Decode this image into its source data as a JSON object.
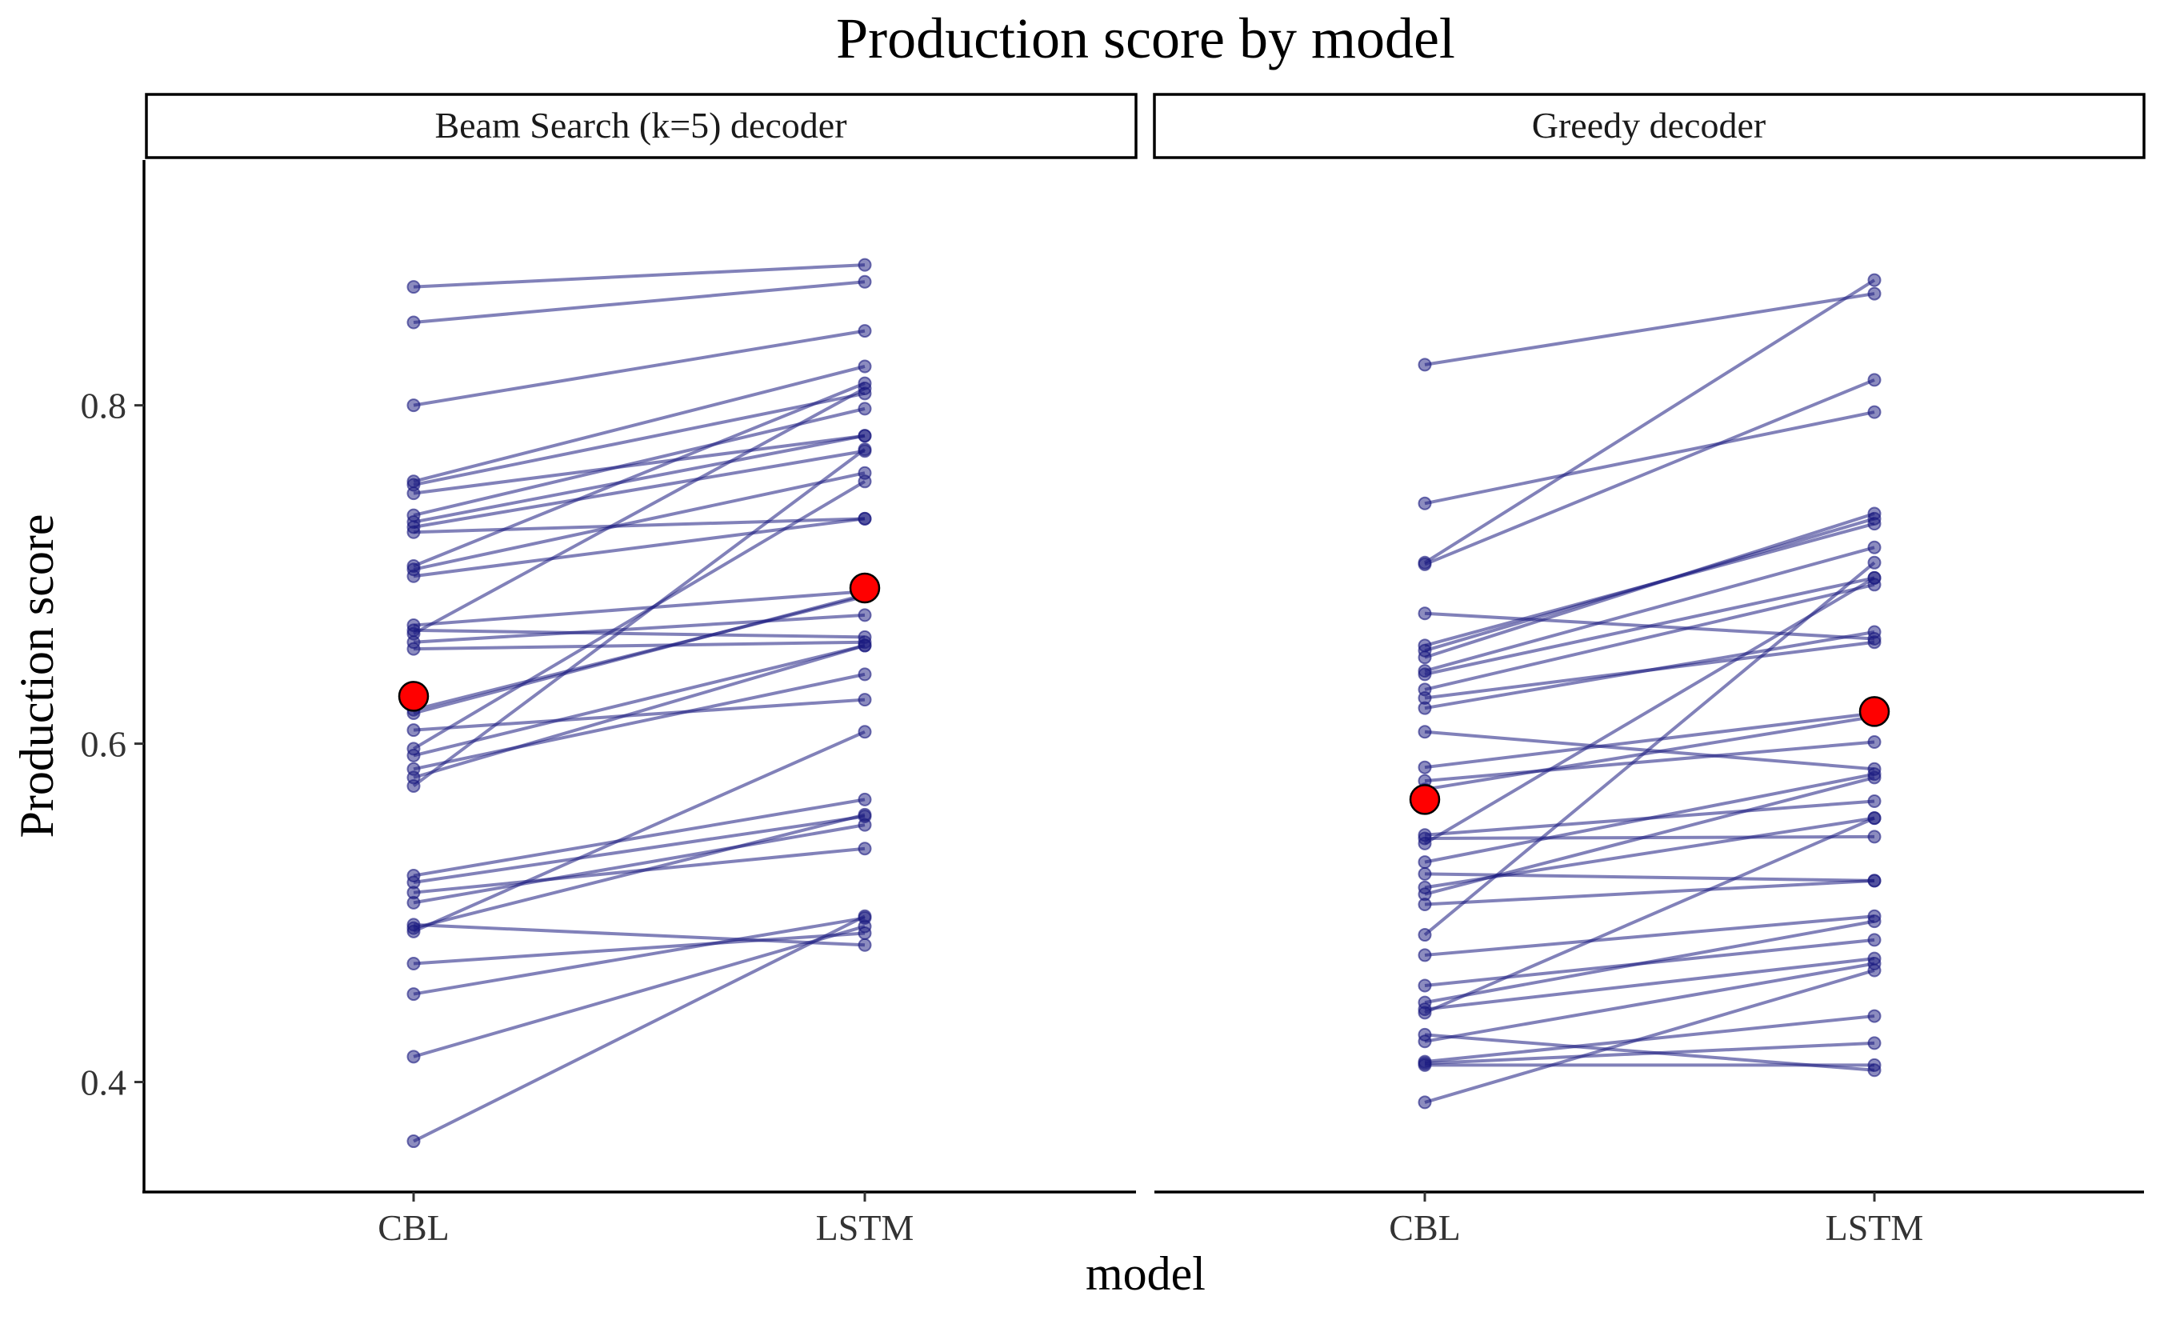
{
  "chart_data": {
    "type": "line",
    "title": "Production score by model",
    "xlabel": "model",
    "ylabel": "Production score",
    "categories": [
      "CBL",
      "LSTM"
    ],
    "y_ticks": [
      0.4,
      0.6,
      0.8
    ],
    "y_tick_labels": [
      "0.4",
      "0.6",
      "0.8"
    ],
    "ylim": [
      0.335,
      0.945
    ],
    "grid": false,
    "legend": "none",
    "colors": {
      "line": "#1a1a80",
      "point": "#1a1a80",
      "mean": "#ff0000",
      "mean_stroke": "#000000"
    },
    "facets": [
      {
        "label": "Beam Search (k=5) decoder",
        "mean": {
          "CBL": 0.628,
          "LSTM": 0.692
        },
        "pairs": [
          [
            0.87,
            0.883
          ],
          [
            0.849,
            0.873
          ],
          [
            0.8,
            0.844
          ],
          [
            0.755,
            0.823
          ],
          [
            0.753,
            0.807
          ],
          [
            0.748,
            0.782
          ],
          [
            0.735,
            0.798
          ],
          [
            0.731,
            0.782
          ],
          [
            0.728,
            0.773
          ],
          [
            0.725,
            0.733
          ],
          [
            0.705,
            0.813
          ],
          [
            0.703,
            0.76
          ],
          [
            0.699,
            0.733
          ],
          [
            0.67,
            0.69
          ],
          [
            0.667,
            0.663
          ],
          [
            0.665,
            0.81
          ],
          [
            0.66,
            0.676
          ],
          [
            0.656,
            0.66
          ],
          [
            0.62,
            0.687
          ],
          [
            0.618,
            0.688
          ],
          [
            0.608,
            0.626
          ],
          [
            0.597,
            0.755
          ],
          [
            0.593,
            0.658
          ],
          [
            0.585,
            0.641
          ],
          [
            0.58,
            0.658
          ],
          [
            0.575,
            0.774
          ],
          [
            0.522,
            0.567
          ],
          [
            0.518,
            0.557
          ],
          [
            0.512,
            0.538
          ],
          [
            0.506,
            0.552
          ],
          [
            0.493,
            0.481
          ],
          [
            0.491,
            0.558
          ],
          [
            0.489,
            0.607
          ],
          [
            0.47,
            0.488
          ],
          [
            0.452,
            0.497
          ],
          [
            0.415,
            0.492
          ],
          [
            0.365,
            0.498
          ]
        ]
      },
      {
        "label": "Greedy decoder",
        "mean": {
          "CBL": 0.567,
          "LSTM": 0.619
        },
        "pairs": [
          [
            0.824,
            0.866
          ],
          [
            0.742,
            0.796
          ],
          [
            0.707,
            0.874
          ],
          [
            0.706,
            0.815
          ],
          [
            0.677,
            0.662
          ],
          [
            0.658,
            0.73
          ],
          [
            0.655,
            0.733
          ],
          [
            0.651,
            0.736
          ],
          [
            0.643,
            0.716
          ],
          [
            0.641,
            0.698
          ],
          [
            0.632,
            0.694
          ],
          [
            0.627,
            0.66
          ],
          [
            0.621,
            0.666
          ],
          [
            0.607,
            0.585
          ],
          [
            0.586,
            0.618
          ],
          [
            0.578,
            0.601
          ],
          [
            0.573,
            0.616
          ],
          [
            0.546,
            0.566
          ],
          [
            0.544,
            0.545
          ],
          [
            0.541,
            0.698
          ],
          [
            0.53,
            0.582
          ],
          [
            0.523,
            0.519
          ],
          [
            0.515,
            0.556
          ],
          [
            0.511,
            0.58
          ],
          [
            0.505,
            0.519
          ],
          [
            0.487,
            0.707
          ],
          [
            0.475,
            0.498
          ],
          [
            0.457,
            0.484
          ],
          [
            0.447,
            0.495
          ],
          [
            0.443,
            0.473
          ],
          [
            0.441,
            0.556
          ],
          [
            0.428,
            0.407
          ],
          [
            0.424,
            0.47
          ],
          [
            0.412,
            0.439
          ],
          [
            0.411,
            0.423
          ],
          [
            0.41,
            0.41
          ],
          [
            0.388,
            0.466
          ]
        ]
      }
    ]
  }
}
